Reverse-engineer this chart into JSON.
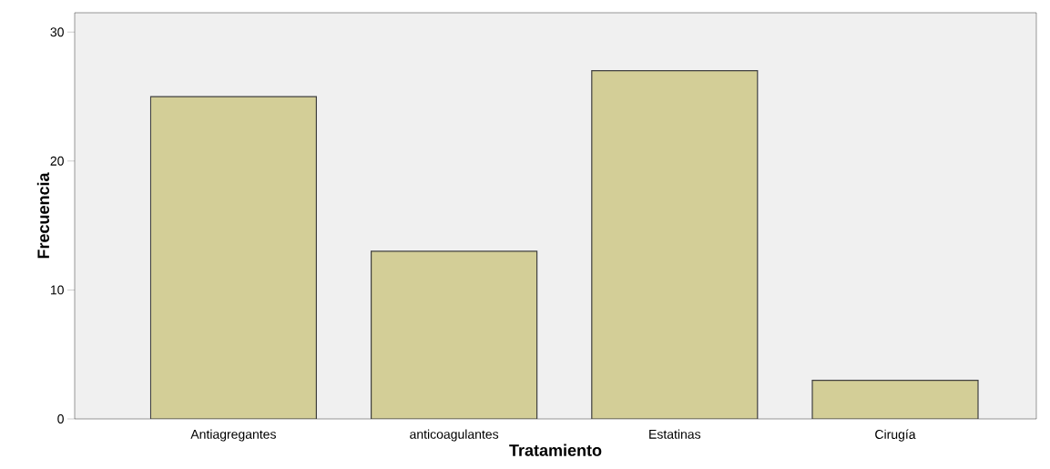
{
  "chart_data": {
    "type": "bar",
    "xlabel": "Tratamiento",
    "ylabel": "Frecuencia",
    "categories": [
      "Antiagregantes",
      "anticoagulantes",
      "Estatinas",
      "Cirugía"
    ],
    "values": [
      25,
      13,
      27,
      3
    ],
    "color": "#d3ce97",
    "ylim": [
      0,
      31.5
    ],
    "yticks": [
      0,
      10,
      20,
      30
    ]
  }
}
